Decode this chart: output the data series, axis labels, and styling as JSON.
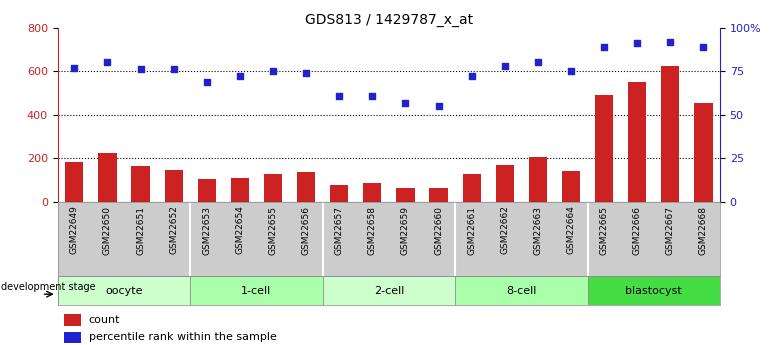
{
  "title": "GDS813 / 1429787_x_at",
  "samples": [
    "GSM22649",
    "GSM22650",
    "GSM22651",
    "GSM22652",
    "GSM22653",
    "GSM22654",
    "GSM22655",
    "GSM22656",
    "GSM22657",
    "GSM22658",
    "GSM22659",
    "GSM22660",
    "GSM22661",
    "GSM22662",
    "GSM22663",
    "GSM22664",
    "GSM22665",
    "GSM22666",
    "GSM22667",
    "GSM22668"
  ],
  "counts": [
    185,
    222,
    163,
    148,
    105,
    110,
    128,
    138,
    75,
    88,
    62,
    62,
    128,
    168,
    205,
    140,
    490,
    550,
    625,
    455
  ],
  "percentiles": [
    77,
    80,
    76,
    76,
    69,
    72,
    75,
    74,
    61,
    61,
    57,
    55,
    72,
    78,
    80,
    75,
    89,
    91,
    92,
    89
  ],
  "groups": [
    {
      "name": "oocyte",
      "start": 0,
      "end": 4,
      "color": "#ccffcc"
    },
    {
      "name": "1-cell",
      "start": 4,
      "end": 8,
      "color": "#aaffaa"
    },
    {
      "name": "2-cell",
      "start": 8,
      "end": 12,
      "color": "#ccffcc"
    },
    {
      "name": "8-cell",
      "start": 12,
      "end": 16,
      "color": "#aaffaa"
    },
    {
      "name": "blastocyst",
      "start": 16,
      "end": 20,
      "color": "#44dd44"
    }
  ],
  "bar_color": "#cc2222",
  "dot_color": "#2222cc",
  "left_ylim": [
    0,
    800
  ],
  "right_ylim": [
    0,
    100
  ],
  "left_yticks": [
    0,
    200,
    400,
    600,
    800
  ],
  "right_yticks": [
    0,
    25,
    50,
    75,
    100
  ],
  "right_yticklabels": [
    "0",
    "25",
    "50",
    "75",
    "100%"
  ],
  "legend_count_label": "count",
  "legend_pct_label": "percentile rank within the sample",
  "bar_width": 0.55,
  "dot_size": 18,
  "grid_lines": [
    200,
    400,
    600
  ],
  "tick_label_bg": "#cccccc",
  "group_border_color": "#888888",
  "dev_stage_label": "development stage"
}
